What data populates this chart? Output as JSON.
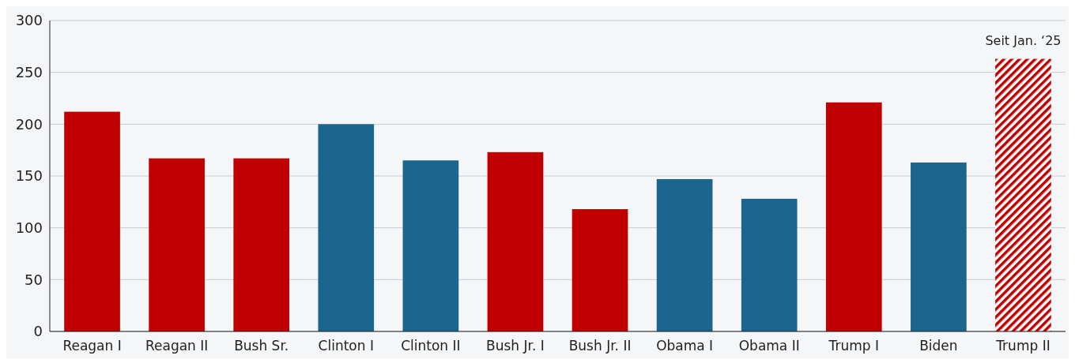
{
  "chart_data": {
    "type": "bar",
    "categories": [
      "Reagan I",
      "Reagan II",
      "Bush Sr.",
      "Clinton I",
      "Clinton II",
      "Bush Jr. I",
      "Bush Jr. II",
      "Obama I",
      "Obama II",
      "Trump I",
      "Biden",
      "Trump II"
    ],
    "values": [
      212,
      167,
      167,
      200,
      165,
      173,
      118,
      147,
      128,
      221,
      163,
      263
    ],
    "colors": [
      "#c00000",
      "#c00000",
      "#c00000",
      "#1b668e",
      "#1b668e",
      "#c00000",
      "#c00000",
      "#1b668e",
      "#1b668e",
      "#c00000",
      "#1b668e",
      "#c00000"
    ],
    "ylim": [
      0,
      300
    ],
    "yticks": [
      0,
      50,
      100,
      150,
      200,
      250,
      300
    ],
    "grid": "y",
    "annotations": [
      {
        "text": "Seit Jan. ‘25",
        "x": "Trump II",
        "y": 263
      }
    ]
  }
}
